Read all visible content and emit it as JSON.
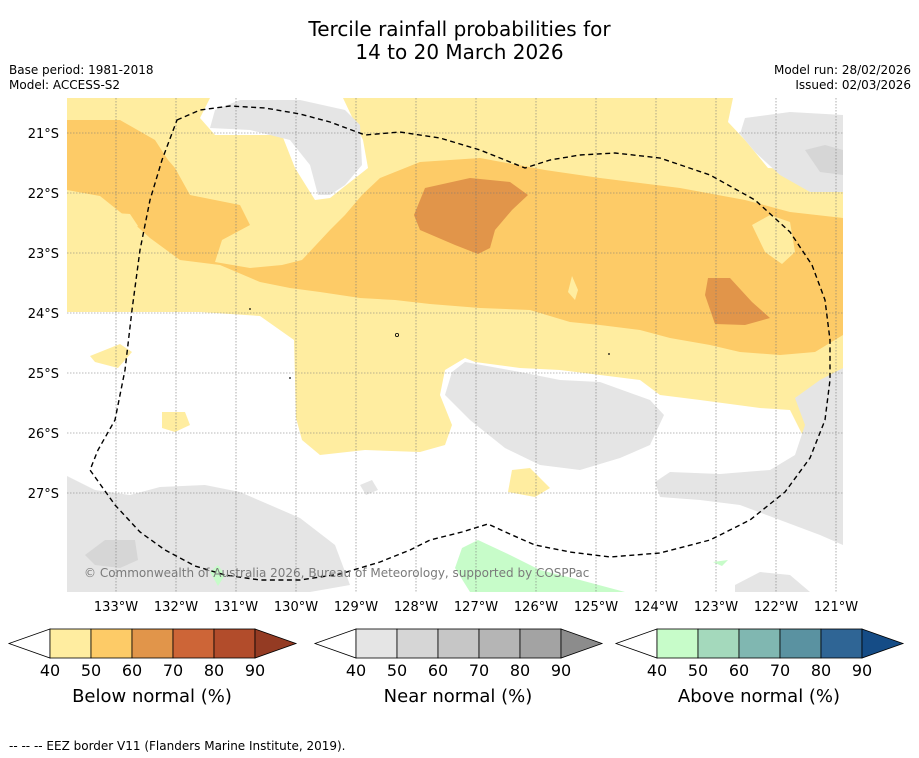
{
  "title": {
    "line1": "Tercile rainfall probabilities for",
    "line2": "14 to 20 March 2026"
  },
  "meta": {
    "base_period": "Base period: 1981-2018",
    "model": "Model: ACCESS-S2",
    "model_run": "Model run: 28/02/2026",
    "issued": "Issued: 02/03/2026"
  },
  "map": {
    "lat_labels": [
      "21°S",
      "22°S",
      "23°S",
      "24°S",
      "25°S",
      "26°S",
      "27°S"
    ],
    "lon_labels": [
      "133°W",
      "132°W",
      "131°W",
      "130°W",
      "129°W",
      "128°W",
      "127°W",
      "126°W",
      "125°W",
      "124°W",
      "123°W",
      "122°W",
      "121°W"
    ],
    "copyright": "© Commonwealth of Australia 2026, Bureau of Meteorology, supported by COSPPac"
  },
  "colorbars": [
    {
      "label": "Below normal (%)",
      "ticks": [
        "40",
        "50",
        "60",
        "70",
        "80",
        "90"
      ],
      "colors": [
        "#ffeda0",
        "#fdcb67",
        "#e1954a",
        "#cd6537",
        "#b24c2b",
        "#943b23"
      ]
    },
    {
      "label": "Near normal (%)",
      "ticks": [
        "40",
        "50",
        "60",
        "70",
        "80",
        "90"
      ],
      "colors": [
        "#e5e5e5",
        "#d6d6d6",
        "#c6c6c6",
        "#b5b5b5",
        "#a3a3a3",
        "#8c8c8c"
      ]
    },
    {
      "label": "Above normal (%)",
      "ticks": [
        "40",
        "50",
        "60",
        "70",
        "80",
        "90"
      ],
      "colors": [
        "#c7fcc9",
        "#a4d9bc",
        "#80b7b1",
        "#5a92a1",
        "#2f6595",
        "#154c86"
      ]
    }
  ],
  "footnote": "--  --  -- EEZ border V11 (Flanders Marine Institute, 2019)."
}
